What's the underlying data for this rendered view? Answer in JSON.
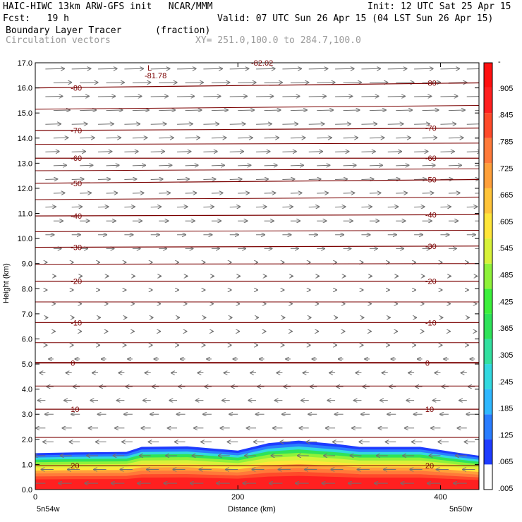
{
  "header": {
    "model_line": "HAIC-HIWC 13km ARW-GFS init   NCAR/MMM",
    "init_line": "Init: 12 UTC Sat 25 Apr 15",
    "fcst_line": "Fcst:   19 h",
    "valid_line": "Valid: 07 UTC Sun 26 Apr 15 (04 LST Sun 26 Apr 15)",
    "field_name": "Boundary Layer Tracer",
    "field_units": "(fraction)",
    "vector_name": "Circulation vectors",
    "xy_range": "XY= 251.0,100.0 to 284.7,100.0"
  },
  "colors": {
    "contour": "#7a0000",
    "vector": "#707070",
    "scale": [
      "#ffffff",
      "#1e3cff",
      "#2a7dff",
      "#30b8ff",
      "#33d9e0",
      "#33e0a0",
      "#2ee35a",
      "#3cf03c",
      "#8ff23a",
      "#d8f23a",
      "#ffe63a",
      "#ffc43a",
      "#ffa03a",
      "#ff7a3a",
      "#ff4a2a",
      "#ff2020",
      "#ff1010"
    ]
  },
  "chart_data": {
    "type": "heatmap",
    "xlabel": "Distance (km)",
    "ylabel": "Height (km)",
    "xlim": [
      0,
      438
    ],
    "ylim": [
      0,
      17
    ],
    "x_ticks": [
      0,
      200,
      400
    ],
    "y_ticks": [
      "0.0",
      "1.0",
      "2.0",
      "3.0",
      "4.0",
      "5.0",
      "6.0",
      "7.0",
      "8.0",
      "9.0",
      "10.0",
      "11.0",
      "12.0",
      "13.0",
      "14.0",
      "15.0",
      "16.0",
      "17.0"
    ],
    "left_endpoint_label": "5n54w",
    "right_endpoint_label": "5n50w",
    "colorbar_labels": [
      ".005",
      ".065",
      ".125",
      ".185",
      ".245",
      ".305",
      ".365",
      ".425",
      ".485",
      ".545",
      ".605",
      ".665",
      ".725",
      ".785",
      ".845",
      ".905",
      "-"
    ],
    "tracer_top_profile": {
      "x": [
        0,
        40,
        90,
        105,
        150,
        200,
        230,
        260,
        300,
        320,
        380,
        420,
        438
      ],
      "top_height": [
        1.45,
        1.48,
        1.5,
        1.7,
        1.72,
        1.55,
        1.85,
        1.95,
        1.8,
        1.7,
        1.7,
        1.45,
        1.35
      ]
    },
    "temperature_contours": [
      {
        "level": 20,
        "height_left": 0.95,
        "height_right": 0.95,
        "label": "20"
      },
      {
        "level": 10,
        "height_left": 3.2,
        "height_right": 3.2,
        "label": "10"
      },
      {
        "level": 0,
        "height_left": 5.05,
        "height_right": 5.05,
        "label": "0"
      },
      {
        "level": -10,
        "height_left": 6.65,
        "height_right": 6.65,
        "label": "-10"
      },
      {
        "level": -20,
        "height_left": 8.3,
        "height_right": 8.3,
        "label": "-20"
      },
      {
        "level": -30,
        "height_left": 9.65,
        "height_right": 9.7,
        "label": "-30"
      },
      {
        "level": -40,
        "height_left": 10.9,
        "height_right": 10.95,
        "label": "-40"
      },
      {
        "level": -50,
        "height_left": 12.2,
        "height_right": 12.35,
        "label": "-50"
      },
      {
        "level": -60,
        "height_left": 13.2,
        "height_right": 13.2,
        "label": "-60"
      },
      {
        "level": -70,
        "height_left": 14.3,
        "height_right": 14.4,
        "label": "-70"
      },
      {
        "level": -80,
        "height_left": 16.0,
        "height_right": 16.2,
        "label": "-80"
      }
    ],
    "extra_labels": {
      "min_marker": "L",
      "min_value": "-81.78",
      "top_value": "-82.02"
    }
  }
}
